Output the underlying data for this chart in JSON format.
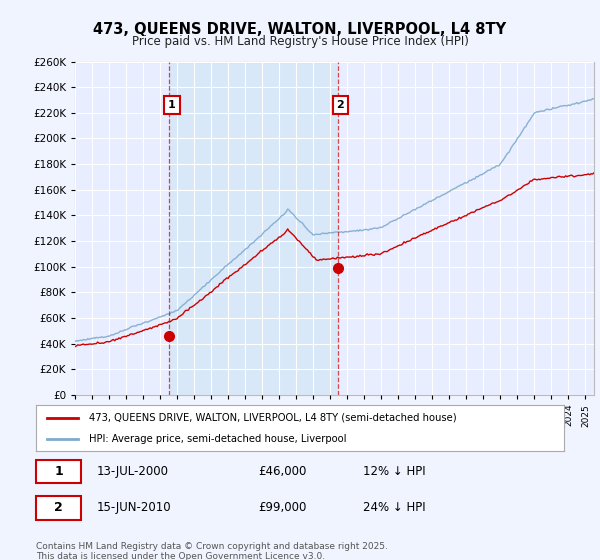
{
  "title": "473, QUEENS DRIVE, WALTON, LIVERPOOL, L4 8TY",
  "subtitle": "Price paid vs. HM Land Registry's House Price Index (HPI)",
  "background_color": "#f0f4ff",
  "plot_bg_color": "#e8eeff",
  "grid_color": "#ffffff",
  "shade_color": "#d8e8f8",
  "red_line_color": "#cc0000",
  "blue_line_color": "#7faacc",
  "ylim_max": 260000,
  "ylim_min": 0,
  "purchase1_date": "13-JUL-2000",
  "purchase1_price": 46000,
  "purchase1_hpi_diff": "12% ↓ HPI",
  "purchase1_year": 2000.54,
  "purchase2_date": "15-JUN-2010",
  "purchase2_price": 99000,
  "purchase2_hpi_diff": "24% ↓ HPI",
  "purchase2_year": 2010.45,
  "legend_label_red": "473, QUEENS DRIVE, WALTON, LIVERPOOL, L4 8TY (semi-detached house)",
  "legend_label_blue": "HPI: Average price, semi-detached house, Liverpool",
  "footnote": "Contains HM Land Registry data © Crown copyright and database right 2025.\nThis data is licensed under the Open Government Licence v3.0."
}
